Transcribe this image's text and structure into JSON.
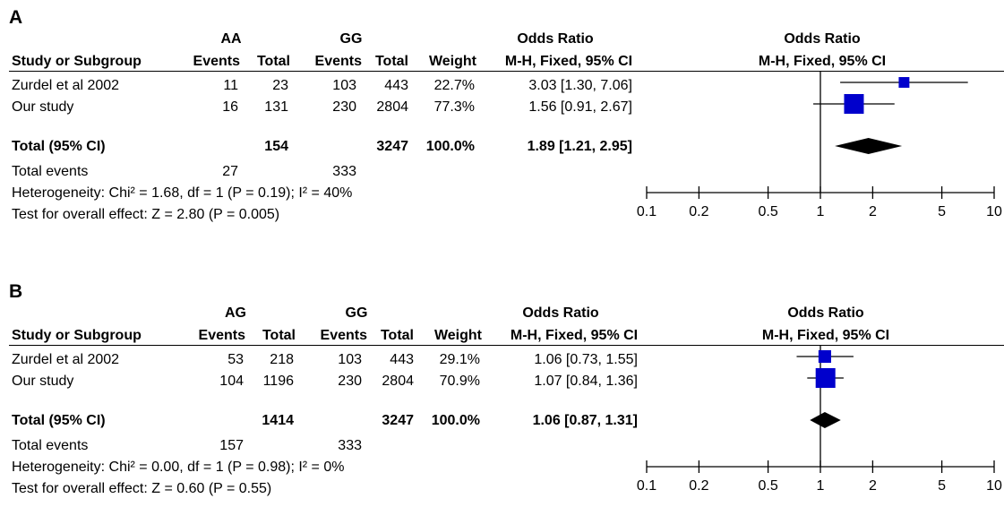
{
  "panels": [
    {
      "letter": "A",
      "group1": "AA",
      "group2": "GG",
      "study_col": "Study or Subgroup",
      "events_col": "Events",
      "total_col": "Total",
      "weight_col": "Weight",
      "or_title": "Odds Ratio",
      "or_method": "M-H, Fixed, 95% CI",
      "studies": [
        {
          "name": "Zurdel et al 2002",
          "e1": "11",
          "t1": "23",
          "e2": "103",
          "t2": "443",
          "weight": "22.7%",
          "ci": "3.03 [1.30, 7.06]"
        },
        {
          "name": "Our study",
          "e1": "16",
          "t1": "131",
          "e2": "230",
          "t2": "2804",
          "weight": "77.3%",
          "ci": "1.56 [0.91, 2.67]"
        }
      ],
      "total_label": "Total (95% CI)",
      "total_t1": "154",
      "total_t2": "3247",
      "total_weight": "100.0%",
      "total_ci": "1.89 [1.21, 2.95]",
      "events_label": "Total events",
      "events_e1": "27",
      "events_e2": "333",
      "heterogeneity": "Heterogeneity: Chi² = 1.68, df = 1 (P = 0.19); I² = 40%",
      "overall": "Test for overall effect: Z = 2.80 (P = 0.005)"
    },
    {
      "letter": "B",
      "group1": "AG",
      "group2": "GG",
      "study_col": "Study or Subgroup",
      "events_col": "Events",
      "total_col": "Total",
      "weight_col": "Weight",
      "or_title": "Odds Ratio",
      "or_method": "M-H, Fixed, 95% CI",
      "studies": [
        {
          "name": "Zurdel et al 2002",
          "e1": "53",
          "t1": "218",
          "e2": "103",
          "t2": "443",
          "weight": "29.1%",
          "ci": "1.06 [0.73, 1.55]"
        },
        {
          "name": "Our study",
          "e1": "104",
          "t1": "1196",
          "e2": "230",
          "t2": "2804",
          "weight": "70.9%",
          "ci": "1.07 [0.84, 1.36]"
        }
      ],
      "total_label": "Total (95% CI)",
      "total_t1": "1414",
      "total_t2": "3247",
      "total_weight": "100.0%",
      "total_ci": "1.06 [0.87, 1.31]",
      "events_label": "Total events",
      "events_e1": "157",
      "events_e2": "333",
      "heterogeneity": "Heterogeneity: Chi² = 0.00, df = 1 (P = 0.98); I² = 0%",
      "overall": "Test for overall effect: Z = 0.60 (P = 0.55)"
    }
  ],
  "chart_data": [
    {
      "type": "forest",
      "title": "Odds Ratio",
      "xlabel": "M-H, Fixed, 95% CI",
      "x_scale": "log",
      "xlim": [
        0.1,
        10
      ],
      "xticks": [
        0.1,
        0.2,
        0.5,
        1,
        2,
        5,
        10
      ],
      "xtick_labels": [
        "0.1",
        "0.2",
        "0.5",
        "1",
        "2",
        "5",
        "10"
      ],
      "reference_line": 1,
      "marker_color": "#0000cc",
      "studies": [
        {
          "name": "Zurdel et al 2002",
          "or": 3.03,
          "lower": 1.3,
          "upper": 7.06,
          "weight": 22.7
        },
        {
          "name": "Our study",
          "or": 1.56,
          "lower": 0.91,
          "upper": 2.67,
          "weight": 77.3
        }
      ],
      "pooled": {
        "or": 1.89,
        "lower": 1.21,
        "upper": 2.95
      }
    },
    {
      "type": "forest",
      "title": "Odds Ratio",
      "xlabel": "M-H, Fixed, 95% CI",
      "x_scale": "log",
      "xlim": [
        0.1,
        10
      ],
      "xticks": [
        0.1,
        0.2,
        0.5,
        1,
        2,
        5,
        10
      ],
      "xtick_labels": [
        "0.1",
        "0.2",
        "0.5",
        "1",
        "2",
        "5",
        "10"
      ],
      "reference_line": 1,
      "marker_color": "#0000cc",
      "studies": [
        {
          "name": "Zurdel et al 2002",
          "or": 1.06,
          "lower": 0.73,
          "upper": 1.55,
          "weight": 29.1
        },
        {
          "name": "Our study",
          "or": 1.07,
          "lower": 0.84,
          "upper": 1.36,
          "weight": 70.9
        }
      ],
      "pooled": {
        "or": 1.06,
        "lower": 0.87,
        "upper": 1.31
      }
    }
  ]
}
